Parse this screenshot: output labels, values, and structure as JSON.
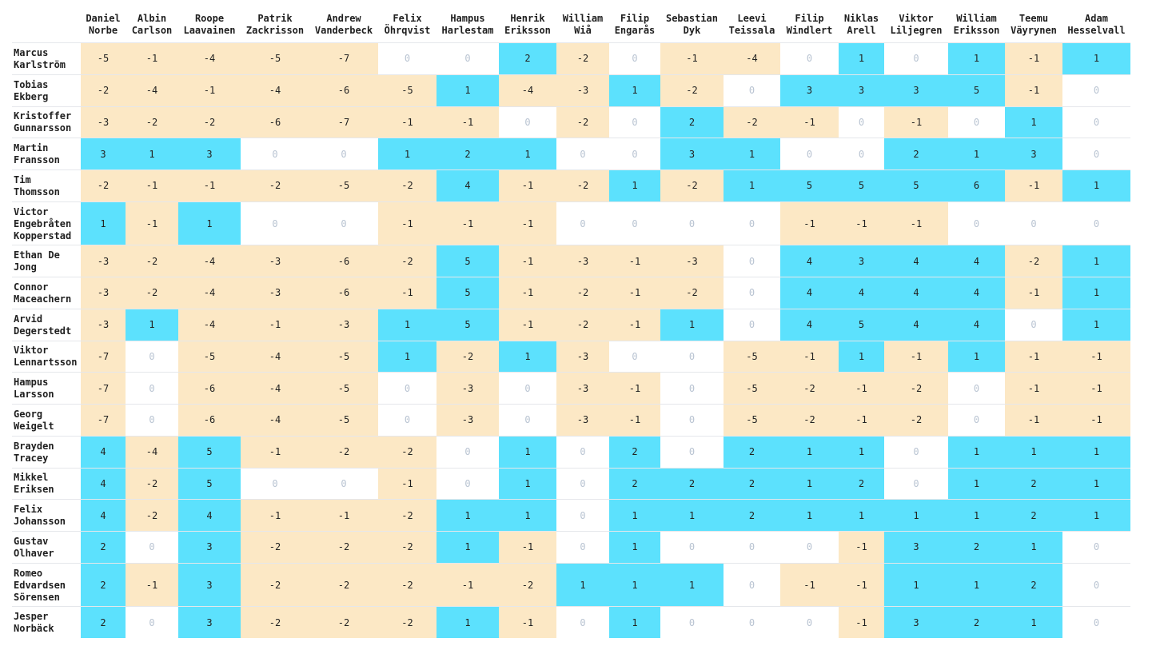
{
  "chart_data": {
    "type": "heatmap",
    "columns": [
      "Daniel\nNorbe",
      "Albin\nCarlson",
      "Roope\nLaavainen",
      "Patrik\nZackrisson",
      "Andrew\nVanderbeck",
      "Felix\nÖhrqvist",
      "Hampus\nHarlestam",
      "Henrik\nEriksson",
      "William\nWiå",
      "Filip\nEngarås",
      "Sebastian\nDyk",
      "Leevi\nTeissala",
      "Filip\nWindlert",
      "Niklas\nArell",
      "Viktor\nLiljegren",
      "William\nEriksson",
      "Teemu\nVäyrynen",
      "Adam\nHesselvall"
    ],
    "rows": [
      "Marcus\nKarlström",
      "Tobias\nEkberg",
      "Kristoffer\nGunnarsson",
      "Martin\nFransson",
      "Tim\nThomsson",
      "Victor\nEngebråten\nKopperstad",
      "Ethan De\nJong",
      "Connor\nMaceachern",
      "Arvid\nDegerstedt",
      "Viktor\nLennartsson",
      "Hampus\nLarsson",
      "Georg\nWeigelt",
      "Brayden\nTracey",
      "Mikkel\nEriksen",
      "Felix\nJohansson",
      "Gustav\nOlhaver",
      "Romeo\nEdvardsen\nSörensen",
      "Jesper\nNorbäck"
    ],
    "values": [
      [
        -5,
        -1,
        -4,
        -5,
        -7,
        0,
        0,
        2,
        -2,
        0,
        -1,
        -4,
        0,
        1,
        0,
        1,
        -1,
        1
      ],
      [
        -2,
        -4,
        -1,
        -4,
        -6,
        -5,
        1,
        -4,
        -3,
        1,
        -2,
        0,
        3,
        3,
        3,
        5,
        -1,
        0
      ],
      [
        -3,
        -2,
        -2,
        -6,
        -7,
        -1,
        -1,
        0,
        -2,
        0,
        2,
        -2,
        -1,
        0,
        -1,
        0,
        1,
        0
      ],
      [
        3,
        1,
        3,
        0,
        0,
        1,
        2,
        1,
        0,
        0,
        3,
        1,
        0,
        0,
        2,
        1,
        3,
        0
      ],
      [
        -2,
        -1,
        -1,
        -2,
        -5,
        -2,
        4,
        -1,
        -2,
        1,
        -2,
        1,
        5,
        5,
        5,
        6,
        -1,
        1
      ],
      [
        1,
        -1,
        1,
        0,
        0,
        -1,
        -1,
        -1,
        0,
        0,
        0,
        0,
        -1,
        -1,
        -1,
        0,
        0,
        0
      ],
      [
        -3,
        -2,
        -4,
        -3,
        -6,
        -2,
        5,
        -1,
        -3,
        -1,
        -3,
        0,
        4,
        3,
        4,
        4,
        -2,
        1
      ],
      [
        -3,
        -2,
        -4,
        -3,
        -6,
        -1,
        5,
        -1,
        -2,
        -1,
        -2,
        0,
        4,
        4,
        4,
        4,
        -1,
        1
      ],
      [
        -3,
        1,
        -4,
        -1,
        -3,
        1,
        5,
        -1,
        -2,
        -1,
        1,
        0,
        4,
        5,
        4,
        4,
        0,
        1
      ],
      [
        -7,
        0,
        -5,
        -4,
        -5,
        1,
        -2,
        1,
        -3,
        0,
        0,
        -5,
        -1,
        1,
        -1,
        1,
        -1,
        -1
      ],
      [
        -7,
        0,
        -6,
        -4,
        -5,
        0,
        -3,
        0,
        -3,
        -1,
        0,
        -5,
        -2,
        -1,
        -2,
        0,
        -1,
        -1
      ],
      [
        -7,
        0,
        -6,
        -4,
        -5,
        0,
        -3,
        0,
        -3,
        -1,
        0,
        -5,
        -2,
        -1,
        -2,
        0,
        -1,
        -1
      ],
      [
        4,
        -4,
        5,
        -1,
        -2,
        -2,
        0,
        1,
        0,
        2,
        0,
        2,
        1,
        1,
        0,
        1,
        1,
        1
      ],
      [
        4,
        -2,
        5,
        0,
        0,
        -1,
        0,
        1,
        0,
        2,
        2,
        2,
        1,
        2,
        0,
        1,
        2,
        1
      ],
      [
        4,
        -2,
        4,
        -1,
        -1,
        -2,
        1,
        1,
        0,
        1,
        1,
        2,
        1,
        1,
        1,
        1,
        2,
        1
      ],
      [
        2,
        0,
        3,
        -2,
        -2,
        -2,
        1,
        -1,
        0,
        1,
        0,
        0,
        0,
        -1,
        3,
        2,
        1,
        0
      ],
      [
        2,
        -1,
        3,
        -2,
        -2,
        -2,
        -1,
        -2,
        1,
        1,
        1,
        0,
        -1,
        -1,
        1,
        1,
        2,
        0
      ],
      [
        2,
        0,
        3,
        -2,
        -2,
        -2,
        1,
        -1,
        0,
        1,
        0,
        0,
        0,
        -1,
        3,
        2,
        1,
        0
      ]
    ],
    "colors": {
      "positive": "#5ce1fd",
      "negative": "#fce8c5",
      "zero": "#ffffff",
      "zero_text": "#b9c4d2"
    }
  }
}
